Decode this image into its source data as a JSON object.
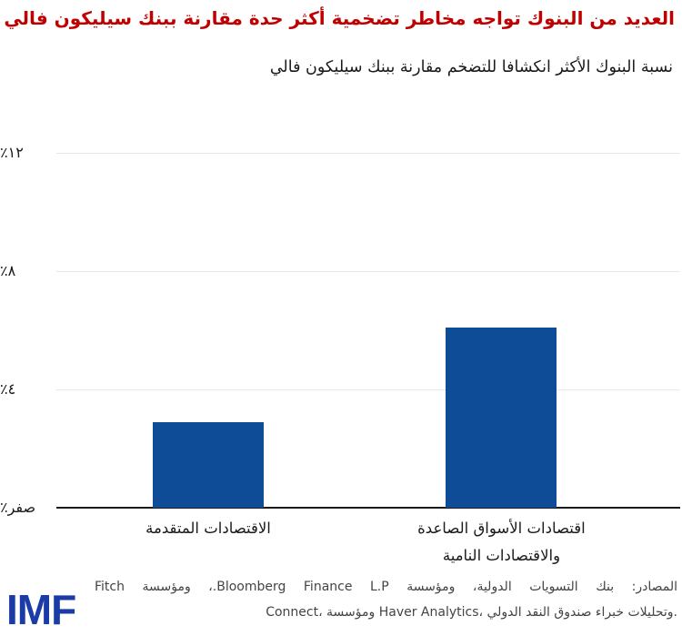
{
  "title": "العديد من البنوك تواجه مخاطر تضخمية أكثر حدة مقارنة ببنك سيليكون فالي",
  "chart_data": {
    "type": "bar",
    "title": "نسبة البنوك الأكثر انكشافا للتضخم مقارنة ببنك سيليكون فالي",
    "categories": [
      "الاقتصادات المتقدمة",
      "اقتصادات الأسواق الصاعدة\nوالاقتصادات النامية"
    ],
    "values": [
      2.9,
      6.1
    ],
    "xlabel": "",
    "ylabel": "",
    "ylim": [
      0,
      12
    ],
    "yticks": [
      {
        "value": 0,
        "label": "صفر٪"
      },
      {
        "value": 4,
        "label": "٤٪"
      },
      {
        "value": 8,
        "label": "٨٪"
      },
      {
        "value": 12,
        "label": "١٢٪"
      }
    ],
    "grid": true,
    "legend": false,
    "bar_color": "#0E4C97"
  },
  "colors": {
    "title": "#C00000",
    "bar": "#0E4C97",
    "axis": "#1a1a1a",
    "gridline": "#e7e7e7",
    "logo": "#1B3CA6",
    "source_text": "#444444"
  },
  "source": {
    "lines": [
      "المصادر: بنك التسويات الدولية، ومؤسسة Bloomberg Finance L.P.، ومؤسسة Fitch",
      "Connect، ومؤسسة Haver Analytics، وتحليلات خبراء صندوق النقد الدولي."
    ]
  },
  "logo": {
    "text": "IMF"
  }
}
